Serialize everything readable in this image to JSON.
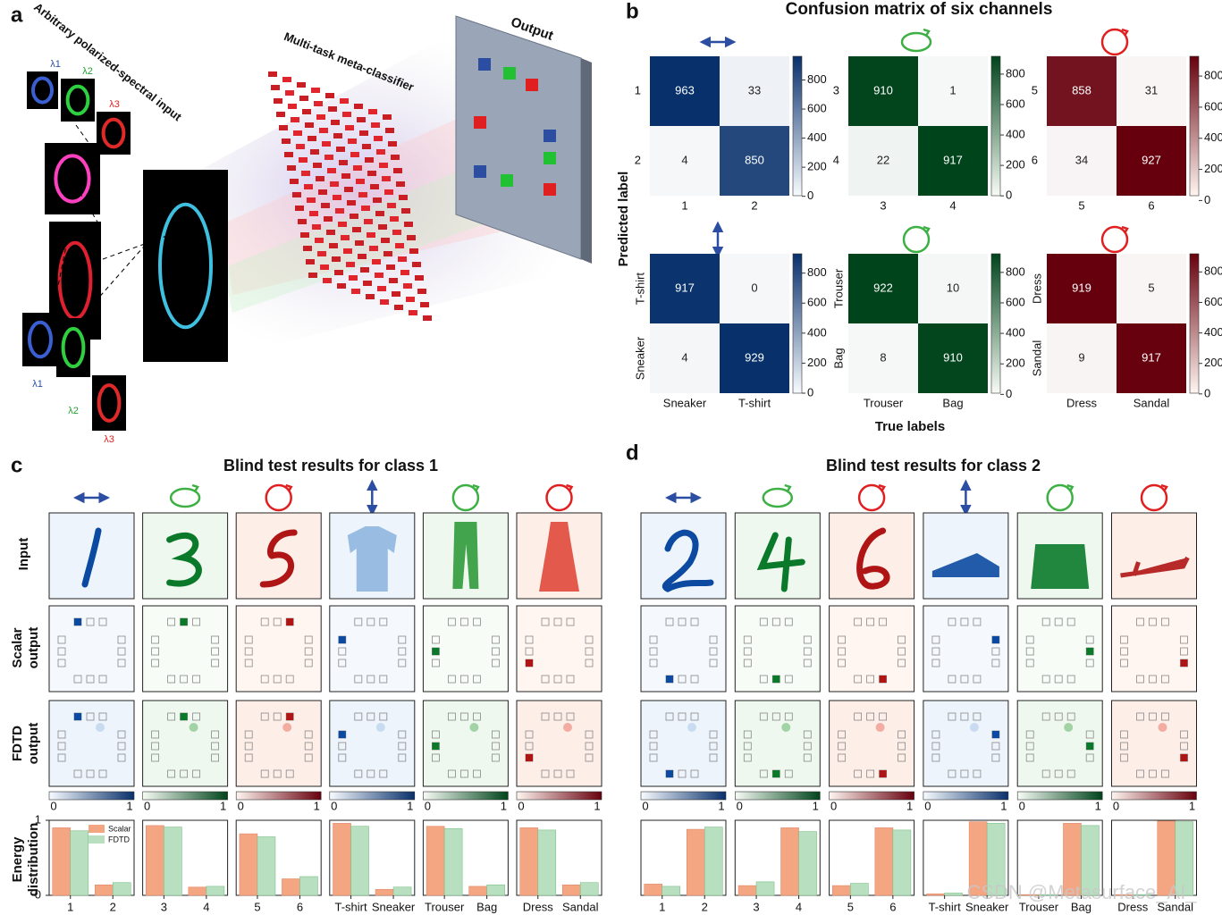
{
  "panel_labels": [
    "a",
    "b",
    "c",
    "d"
  ],
  "panel_a": {
    "input_label": "Arbitrary polarized-spectral input",
    "classifier_label": "Multi-task meta-classifier",
    "output_label": "Output",
    "lambdas": [
      "λ1",
      "λ2",
      "λ3"
    ]
  },
  "panel_b": {
    "title": "Confusion matrix of six channels",
    "ylabel": "Predicted label",
    "xlabel": "True labels",
    "matrices": [
      {
        "color": "#08306b",
        "xcats": [
          "1",
          "2"
        ],
        "ycats": [
          "1",
          "2"
        ],
        "values": [
          [
            963,
            33
          ],
          [
            4,
            850
          ]
        ],
        "clim": [
          4,
          963
        ],
        "cticks": [
          0,
          200,
          400,
          600,
          800
        ]
      },
      {
        "color": "#00441b",
        "xcats": [
          "3",
          "4"
        ],
        "ycats": [
          "3",
          "4"
        ],
        "values": [
          [
            910,
            1
          ],
          [
            22,
            917
          ]
        ],
        "clim": [
          1,
          917
        ],
        "cticks": [
          0,
          200,
          400,
          600,
          800
        ]
      },
      {
        "color": "#67000d",
        "xcats": [
          "5",
          "6"
        ],
        "ycats": [
          "5",
          "6"
        ],
        "values": [
          [
            858,
            31
          ],
          [
            34,
            927
          ]
        ],
        "clim": [
          31,
          927
        ],
        "cticks": [
          0,
          200,
          400,
          600,
          800
        ]
      },
      {
        "color": "#08306b",
        "xcats": [
          "Sneaker",
          "T-shirt"
        ],
        "ycats": [
          "T-shirt",
          "Sneaker"
        ],
        "values": [
          [
            917,
            0
          ],
          [
            4,
            929
          ]
        ],
        "clim": [
          0,
          929
        ],
        "cticks": [
          0,
          200,
          400,
          600,
          800
        ]
      },
      {
        "color": "#00441b",
        "xcats": [
          "Trouser",
          "Bag"
        ],
        "ycats": [
          "Trouser",
          "Bag"
        ],
        "values": [
          [
            922,
            10
          ],
          [
            8,
            910
          ]
        ],
        "clim": [
          8,
          922
        ],
        "cticks": [
          0,
          200,
          400,
          600,
          800
        ]
      },
      {
        "color": "#67000d",
        "xcats": [
          "Dress",
          "Sandal"
        ],
        "ycats": [
          "Dress",
          "Sandal"
        ],
        "values": [
          [
            919,
            5
          ],
          [
            9,
            917
          ]
        ],
        "clim": [
          5,
          919
        ],
        "cticks": [
          0,
          200,
          400,
          600,
          800
        ]
      }
    ]
  },
  "row_labels": [
    [
      "Input"
    ],
    [
      "Scalar",
      "output"
    ],
    [
      "FDTD",
      "output"
    ],
    [
      "Energy",
      "distribution"
    ]
  ],
  "colorbar_ticks": [
    0,
    1
  ],
  "energy_ylim": [
    0,
    1
  ],
  "energy_yticks": [
    0,
    1
  ],
  "legend": [
    {
      "name": "Scalar",
      "color": "#f4a582"
    },
    {
      "name": "FDTD",
      "color": "#b8e0c0"
    }
  ],
  "panels": [
    {
      "title": "Blind test results for class 1",
      "charts": [
        {
          "categories": [
            "1",
            "2"
          ],
          "scalar": [
            0.9,
            0.14
          ],
          "fdtd": [
            0.86,
            0.17
          ]
        },
        {
          "categories": [
            "3",
            "4"
          ],
          "scalar": [
            0.93,
            0.11
          ],
          "fdtd": [
            0.91,
            0.12
          ]
        },
        {
          "categories": [
            "5",
            "6"
          ],
          "scalar": [
            0.82,
            0.22
          ],
          "fdtd": [
            0.78,
            0.25
          ]
        },
        {
          "categories": [
            "T-shirt",
            "Sneaker"
          ],
          "scalar": [
            0.96,
            0.08
          ],
          "fdtd": [
            0.92,
            0.11
          ]
        },
        {
          "categories": [
            "Trouser",
            "Bag"
          ],
          "scalar": [
            0.92,
            0.12
          ],
          "fdtd": [
            0.89,
            0.14
          ]
        },
        {
          "categories": [
            "Dress",
            "Sandal"
          ],
          "scalar": [
            0.9,
            0.14
          ],
          "fdtd": [
            0.87,
            0.17
          ]
        }
      ]
    },
    {
      "title": "Blind test results for class 2",
      "charts": [
        {
          "categories": [
            "1",
            "2"
          ],
          "scalar": [
            0.15,
            0.88
          ],
          "fdtd": [
            0.12,
            0.91
          ]
        },
        {
          "categories": [
            "3",
            "4"
          ],
          "scalar": [
            0.13,
            0.9
          ],
          "fdtd": [
            0.18,
            0.85
          ]
        },
        {
          "categories": [
            "5",
            "6"
          ],
          "scalar": [
            0.13,
            0.9
          ],
          "fdtd": [
            0.16,
            0.87
          ]
        },
        {
          "categories": [
            "T-shirt",
            "Sneaker"
          ],
          "scalar": [
            0.02,
            0.98
          ],
          "fdtd": [
            0.03,
            0.96
          ]
        },
        {
          "categories": [
            "Trouser",
            "Bag"
          ],
          "scalar": [
            0.01,
            0.96
          ],
          "fdtd": [
            0.01,
            0.93
          ]
        },
        {
          "categories": [
            "Dress",
            "Sandal"
          ],
          "scalar": [
            0.01,
            0.99
          ],
          "fdtd": [
            0.01,
            0.98
          ]
        }
      ]
    }
  ],
  "watermark": "CSDN @Metasurface_AI_"
}
